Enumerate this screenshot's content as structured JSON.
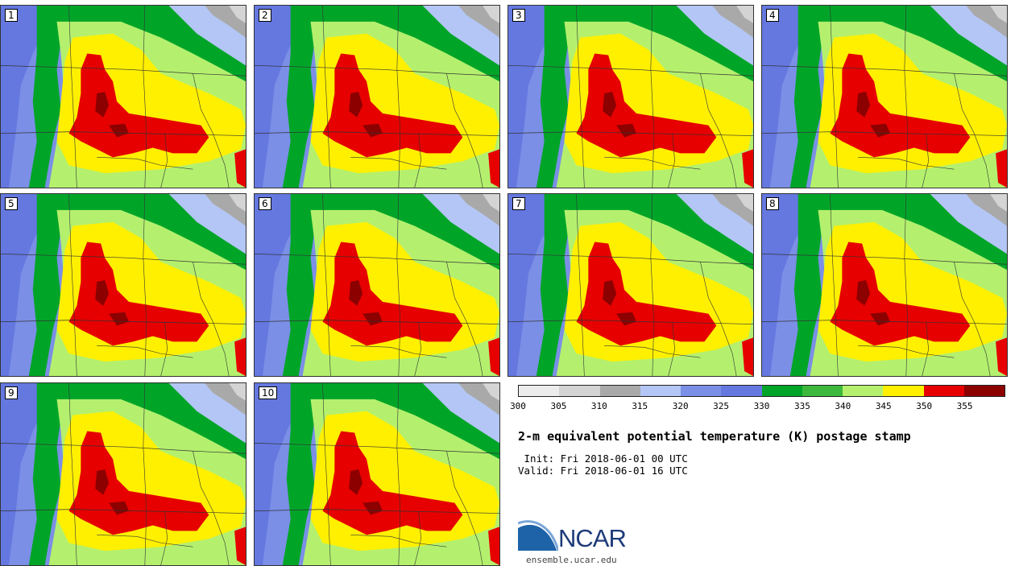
{
  "panels": [
    {
      "label": "1"
    },
    {
      "label": "2"
    },
    {
      "label": "3"
    },
    {
      "label": "4"
    },
    {
      "label": "5"
    },
    {
      "label": "6"
    },
    {
      "label": "7"
    },
    {
      "label": "8"
    },
    {
      "label": "9"
    },
    {
      "label": "10"
    }
  ],
  "colorbar": {
    "colors": [
      "#ececec",
      "#d4d4d4",
      "#a9a9a9",
      "#b3c6f5",
      "#7b8fe6",
      "#6478e0",
      "#00a528",
      "#3cb93c",
      "#b4f06e",
      "#fff000",
      "#e60000",
      "#8c0000"
    ],
    "ticks": [
      "300",
      "305",
      "310",
      "315",
      "320",
      "325",
      "330",
      "335",
      "340",
      "345",
      "350",
      "355"
    ]
  },
  "title": "2-m equivalent potential temperature (K) postage stamp",
  "init_line": " Init: Fri 2018-06-01 00 UTC",
  "valid_line": "Valid: Fri 2018-06-01 16 UTC",
  "logo": {
    "name": "NCAR",
    "url": "ensemble.ucar.edu"
  }
}
